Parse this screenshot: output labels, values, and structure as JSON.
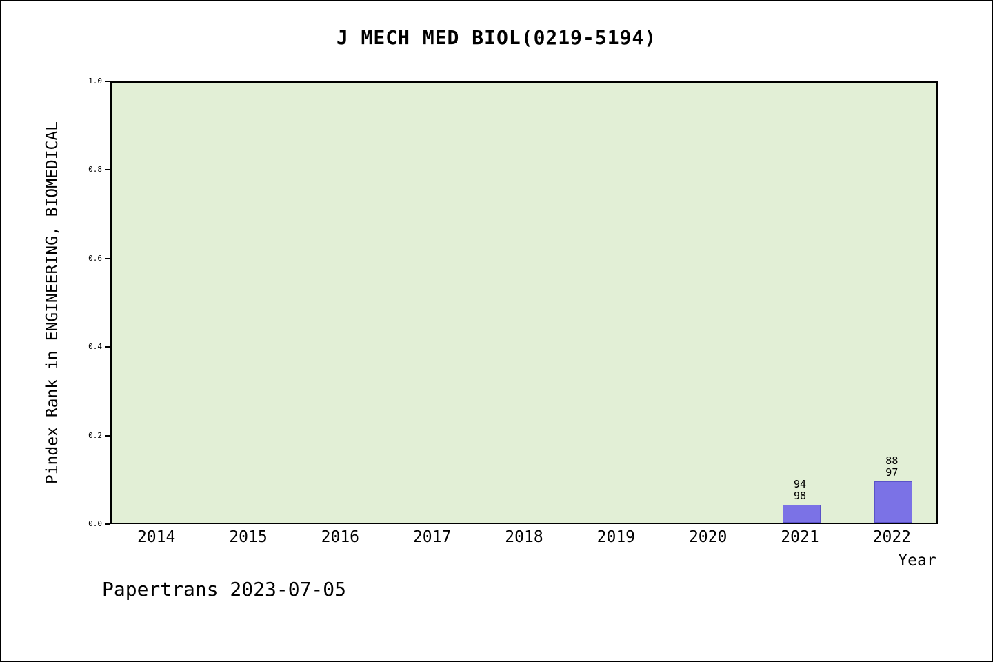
{
  "footer": {
    "text": "Papertrans 2023-07-05"
  },
  "chart_data": {
    "type": "bar",
    "title": "J MECH MED BIOL(0219-5194)",
    "xlabel": "Year",
    "ylabel": "Pindex Rank in ENGINEERING, BIOMEDICAL",
    "categories": [
      "2014",
      "2015",
      "2016",
      "2017",
      "2018",
      "2019",
      "2020",
      "2021",
      "2022"
    ],
    "values": [
      null,
      null,
      null,
      null,
      null,
      null,
      null,
      0.041,
      0.093
    ],
    "bar_labels": [
      null,
      null,
      null,
      null,
      null,
      null,
      null,
      [
        "94",
        "98"
      ],
      [
        "88",
        "97"
      ]
    ],
    "ylim": [
      0,
      1
    ],
    "yticks": [
      "0.0",
      "0.2",
      "0.4",
      "0.6",
      "0.8",
      "1.0"
    ],
    "grid": false,
    "legend": null,
    "colors": {
      "bar_fill": "#7b72e6",
      "bar_edge": "#5a52c8",
      "plot_bg": "#e2efd6",
      "page_bg": "#ffffff"
    }
  }
}
